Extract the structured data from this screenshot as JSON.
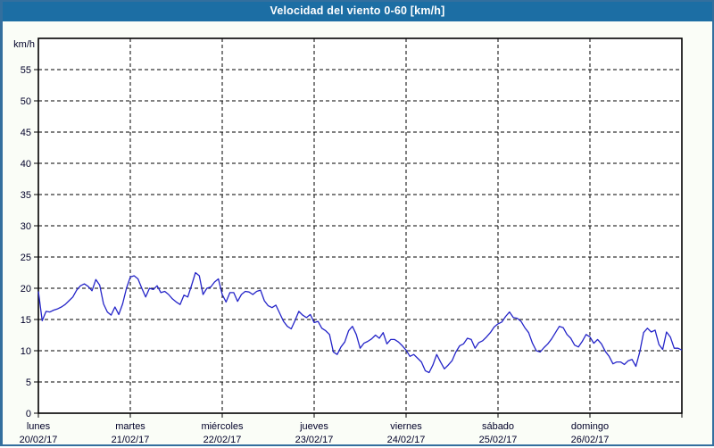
{
  "window": {
    "title": "Velocidad del viento 0-60 [km/h]"
  },
  "colors": {
    "titlebar_bg": "#1C6EA4",
    "title_text": "#FFFFFF",
    "frame_border": "#336F9E",
    "page_bg": "#FAFDF7",
    "plot_bg": "#FFFFFF",
    "plot_border": "#000000",
    "grid": "#000000",
    "line": "#2424C8",
    "label_text": "#000028"
  },
  "chart_data": {
    "type": "line",
    "title": "Velocidad del viento 0-60 [km/h]",
    "ylabel": "km/h",
    "ylim": [
      0,
      60
    ],
    "ytick_step": 5,
    "ytick_labels": [
      0,
      5,
      10,
      15,
      20,
      25,
      30,
      35,
      40,
      45,
      50,
      55
    ],
    "grid": true,
    "legend_position": "none",
    "x_days": [
      {
        "name": "lunes",
        "date": "20/02/17"
      },
      {
        "name": "martes",
        "date": "21/02/17"
      },
      {
        "name": "miércoles",
        "date": "22/02/17"
      },
      {
        "name": "jueves",
        "date": "23/02/17"
      },
      {
        "name": "viernes",
        "date": "24/02/17"
      },
      {
        "name": "sábado",
        "date": "25/02/17"
      },
      {
        "name": "domingo",
        "date": "26/02/17"
      }
    ],
    "series": [
      {
        "name": "Velocidad del viento",
        "unit": "km/h",
        "values": [
          19.5,
          14.8,
          16.3,
          16.2,
          16.5,
          16.7,
          17.0,
          17.4,
          18.0,
          18.6,
          19.7,
          20.4,
          20.7,
          20.3,
          19.6,
          21.4,
          20.5,
          17.5,
          16.2,
          15.7,
          17.0,
          15.8,
          17.5,
          20.0,
          21.8,
          22.0,
          21.5,
          20.0,
          18.6,
          20.0,
          19.8,
          20.4,
          19.3,
          19.5,
          19.0,
          18.3,
          17.8,
          17.4,
          18.9,
          18.6,
          20.5,
          22.5,
          22.0,
          19.0,
          20.0,
          20.2,
          21.0,
          21.5,
          19.0,
          17.8,
          19.3,
          19.3,
          17.9,
          19.0,
          19.5,
          19.4,
          19.0,
          19.5,
          19.7,
          18.0,
          17.2,
          16.9,
          17.3,
          16.0,
          14.7,
          13.9,
          13.5,
          14.8,
          16.3,
          15.7,
          15.3,
          15.8,
          14.5,
          14.7,
          13.6,
          13.2,
          12.6,
          9.8,
          9.4,
          10.6,
          11.4,
          13.2,
          13.9,
          12.6,
          10.4,
          11.2,
          11.5,
          11.9,
          12.5,
          12.0,
          12.9,
          11.1,
          11.8,
          11.8,
          11.4,
          10.8,
          10.1,
          9.1,
          9.4,
          8.8,
          8.2,
          6.8,
          6.5,
          7.7,
          9.4,
          8.2,
          7.1,
          7.7,
          8.4,
          9.8,
          10.8,
          11.1,
          12.0,
          11.8,
          10.4,
          11.3,
          11.6,
          12.2,
          12.9,
          13.8,
          14.3,
          14.6,
          15.5,
          16.2,
          15.3,
          15.2,
          14.7,
          13.7,
          12.9,
          11.2,
          10.0,
          9.8,
          10.5,
          11.1,
          11.9,
          12.9,
          13.9,
          13.7,
          12.6,
          12.0,
          10.9,
          10.6,
          11.5,
          12.6,
          12.2,
          11.2,
          11.8,
          11.1,
          9.9,
          9.1,
          7.9,
          8.2,
          8.2,
          7.8,
          8.4,
          8.6,
          7.5,
          9.8,
          12.9,
          13.6,
          13.0,
          13.3,
          11.0,
          10.2,
          13.0,
          12.2,
          10.4,
          10.4,
          10.1
        ]
      }
    ]
  }
}
